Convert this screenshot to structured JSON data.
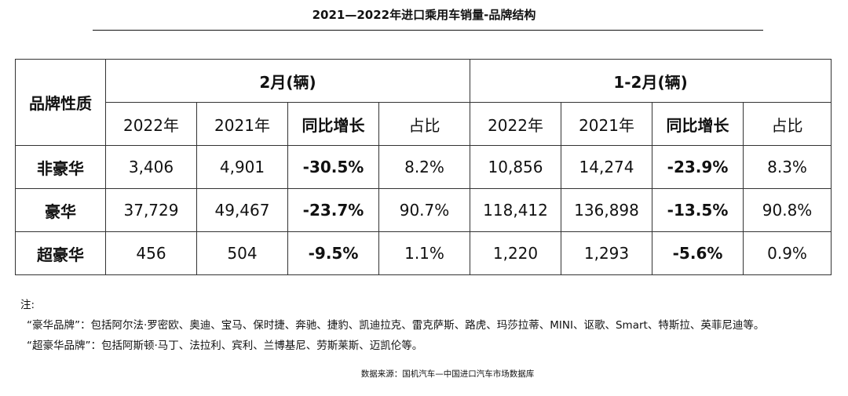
{
  "title": "2021—2022年进口乘用车销量-品牌结构",
  "table": {
    "corner_header": "品牌性质",
    "group_headers": [
      "2月(辆)",
      "1-2月(辆)"
    ],
    "column_headers": [
      "2022年",
      "2021年",
      "同比增长",
      "占比",
      "2022年",
      "2021年",
      "同比增长",
      "占比"
    ],
    "rows": [
      {
        "label": "非豪华",
        "cells": [
          "3,406",
          "4,901",
          "-30.5%",
          "8.2%",
          "10,856",
          "14,274",
          "-23.9%",
          "8.3%"
        ]
      },
      {
        "label": "豪华",
        "cells": [
          "37,729",
          "49,467",
          "-23.7%",
          "90.7%",
          "118,412",
          "136,898",
          "-13.5%",
          "90.8%"
        ]
      },
      {
        "label": "超豪华",
        "cells": [
          "456",
          "504",
          "-9.5%",
          "1.1%",
          "1,220",
          "1,293",
          "-5.6%",
          "0.9%"
        ]
      }
    ]
  },
  "notes": {
    "heading": "注:",
    "line1": "“豪华品牌”：包括阿尔法·罗密欧、奥迪、宝马、保时捷、奔驰、捷豹、凯迪拉克、雷克萨斯、路虎、玛莎拉蒂、MINI、讴歌、Smart、特斯拉、英菲尼迪等。",
    "line2": "“超豪华品牌”：包括阿斯顿·马丁、法拉利、宾利、兰博基尼、劳斯莱斯、迈凯伦等。"
  },
  "source": "数据来源：国机汽车—中国进口汽车市场数据库"
}
